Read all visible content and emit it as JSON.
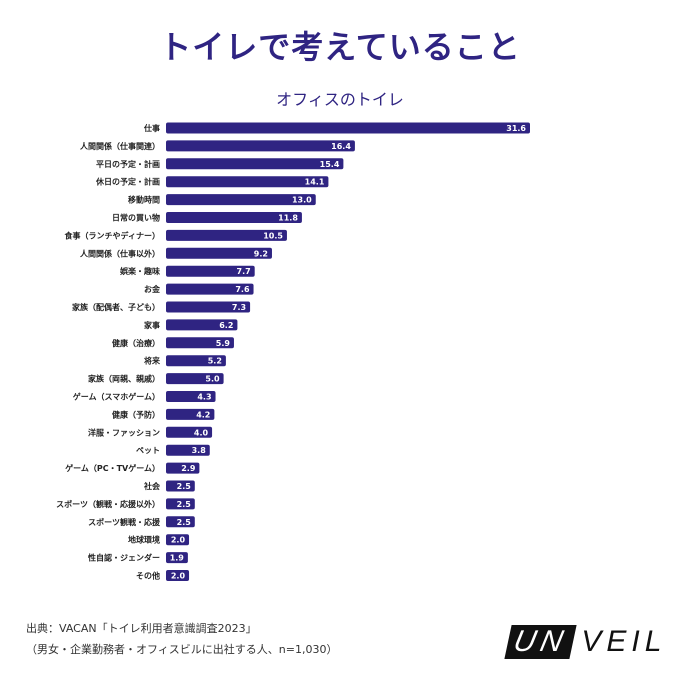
{
  "header": {
    "title": "トイレで考えていること",
    "subtitle": "オフィスのトイレ"
  },
  "chart_data": {
    "type": "bar",
    "orientation": "horizontal",
    "title": "トイレで考えていること",
    "subtitle": "オフィスのトイレ",
    "categories": [
      "仕事",
      "人間関係（仕事関連）",
      "平日の予定・計画",
      "休日の予定・計画",
      "移動時間",
      "日常の買い物",
      "食事（ランチやディナー）",
      "人間関係（仕事以外）",
      "娯楽・趣味",
      "お金",
      "家族（配偶者、子ども）",
      "家事",
      "健康（治療）",
      "将来",
      "家族（両親、親戚）",
      "ゲーム（スマホゲーム）",
      "健康（予防）",
      "洋服・ファッション",
      "ペット",
      "ゲーム（PC・TVゲーム）",
      "社会",
      "スポーツ（観戦・応援以外）",
      "スポーツ観戦・応援",
      "地球環境",
      "性自認・ジェンダー",
      "その他"
    ],
    "values": [
      31.6,
      16.4,
      15.4,
      14.1,
      13.0,
      11.8,
      10.5,
      9.2,
      7.7,
      7.6,
      7.3,
      6.2,
      5.9,
      5.2,
      5.0,
      4.3,
      4.2,
      4.0,
      3.8,
      2.9,
      2.5,
      2.5,
      2.5,
      2.0,
      1.9,
      2.0
    ],
    "value_labels": [
      "31.6",
      "16.4",
      "15.4",
      "14.1",
      "13.0",
      "11.8",
      "10.5",
      "9.2",
      "7.7",
      "7.6",
      "7.3",
      "6.2",
      "5.9",
      "5.2",
      "5.0",
      "4.3",
      "4.2",
      "4.0",
      "3.8",
      "2.9",
      "2.5",
      "2.5",
      "2.5",
      "2.0",
      "1.9",
      "2.0"
    ],
    "xlim": [
      0,
      31.6
    ],
    "grid": false,
    "color": "#2f2482"
  },
  "footer": {
    "source_line1": "出典：VACAN「トイレ利用者意識調査2023」",
    "source_line2": "（男女・企業勤務者・オフィスビルに出社する人、n=1,030）",
    "logo_un": "UN",
    "logo_rest": "VEIL"
  }
}
